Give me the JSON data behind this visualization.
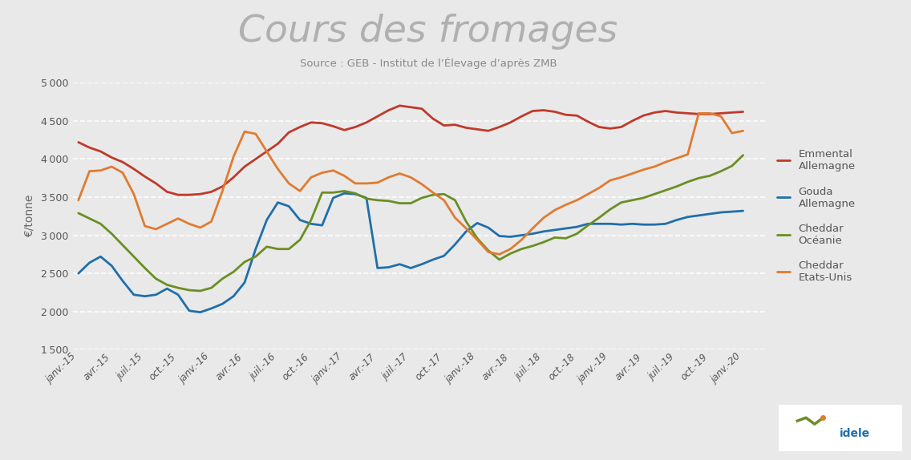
{
  "title": "Cours des fromages",
  "subtitle": "Source : GEB - Institut de l’Élevage d’après ZMB",
  "ylabel": "€/tonne",
  "ylim": [
    1500,
    5000
  ],
  "yticks": [
    1500,
    2000,
    2500,
    3000,
    3500,
    4000,
    4500,
    5000
  ],
  "background_color": "#e9e9e9",
  "plot_bg_color": "#e9e9e9",
  "title_color": "#b0b0b0",
  "subtitle_color": "#888888",
  "tick_label_color": "#555555",
  "ylabel_color": "#666666",
  "grid_color": "#ffffff",
  "xtick_labels": [
    "janv.-15",
    "avr.-15",
    "juil.-15",
    "oct.-15",
    "janv.-16",
    "avr.-16",
    "juil.-16",
    "oct.-16",
    "janv.-17",
    "avr.-17",
    "juil.-17",
    "oct.-17",
    "janv.-18",
    "avr.-18",
    "juil.-18",
    "oct.-18",
    "janv.-19",
    "avr.-19",
    "juil.-19",
    "oct.-19",
    "janv.-20"
  ],
  "series": {
    "Emmental\nAllemagne": {
      "color": "#c0392b",
      "data": [
        4220,
        4150,
        4100,
        4020,
        3960,
        3870,
        3770,
        3680,
        3570,
        3530,
        3530,
        3540,
        3570,
        3640,
        3760,
        3900,
        4000,
        4100,
        4200,
        4350,
        4420,
        4480,
        4470,
        4430,
        4380,
        4420,
        4480,
        4560,
        4640,
        4700,
        4680,
        4660,
        4530,
        4440,
        4450,
        4410,
        4390,
        4370,
        4420,
        4480,
        4560,
        4630,
        4640,
        4620,
        4580,
        4570,
        4490,
        4420,
        4400,
        4420,
        4500,
        4570,
        4610,
        4630,
        4610,
        4600,
        4590,
        4590,
        4600,
        4610,
        4620
      ]
    },
    "Gouda\nAllemagne": {
      "color": "#1f6faa",
      "data": [
        2500,
        2640,
        2720,
        2600,
        2400,
        2220,
        2200,
        2220,
        2300,
        2220,
        2010,
        1990,
        2040,
        2100,
        2200,
        2380,
        2820,
        3200,
        3430,
        3380,
        3200,
        3150,
        3130,
        3490,
        3550,
        3540,
        3490,
        2570,
        2580,
        2620,
        2570,
        2620,
        2680,
        2730,
        2880,
        3050,
        3160,
        3100,
        2990,
        2980,
        3000,
        3020,
        3050,
        3070,
        3090,
        3110,
        3150,
        3150,
        3150,
        3140,
        3150,
        3140,
        3140,
        3150,
        3200,
        3240,
        3260,
        3280,
        3300,
        3310,
        3320
      ]
    },
    "Cheddar\nOcéanie": {
      "color": "#6b8e23",
      "data": [
        3290,
        3220,
        3150,
        3020,
        2870,
        2720,
        2570,
        2430,
        2350,
        2310,
        2280,
        2270,
        2310,
        2430,
        2520,
        2650,
        2720,
        2850,
        2820,
        2820,
        2940,
        3200,
        3560,
        3560,
        3580,
        3550,
        3480,
        3460,
        3450,
        3420,
        3420,
        3490,
        3530,
        3540,
        3460,
        3180,
        2960,
        2800,
        2680,
        2760,
        2820,
        2860,
        2910,
        2970,
        2960,
        3020,
        3130,
        3230,
        3340,
        3430,
        3460,
        3490,
        3540,
        3590,
        3640,
        3700,
        3750,
        3780,
        3840,
        3910,
        4050
      ]
    },
    "Cheddar\nEtats-Unis": {
      "color": "#e07b30",
      "data": [
        3460,
        3840,
        3850,
        3900,
        3820,
        3540,
        3120,
        3080,
        3150,
        3220,
        3150,
        3100,
        3180,
        3580,
        4030,
        4360,
        4330,
        4100,
        3870,
        3680,
        3580,
        3760,
        3820,
        3850,
        3780,
        3680,
        3680,
        3690,
        3760,
        3810,
        3760,
        3670,
        3560,
        3460,
        3230,
        3090,
        2940,
        2780,
        2750,
        2820,
        2940,
        3090,
        3230,
        3330,
        3400,
        3460,
        3540,
        3620,
        3720,
        3760,
        3810,
        3860,
        3900,
        3960,
        4010,
        4060,
        4600,
        4600,
        4560,
        4340,
        4370
      ]
    }
  }
}
